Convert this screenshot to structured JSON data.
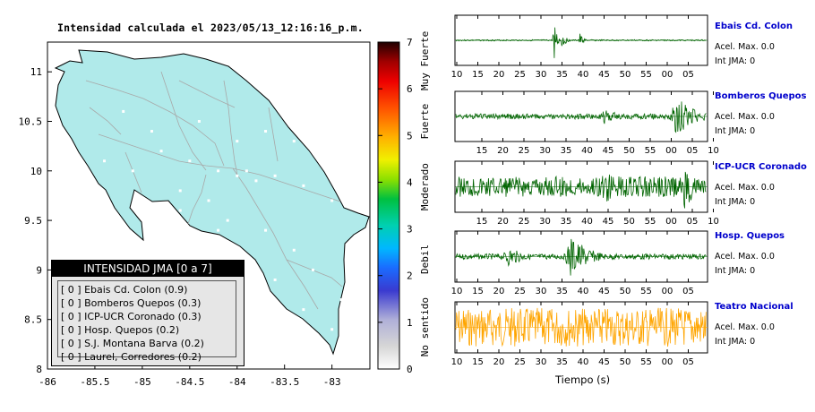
{
  "map": {
    "title": "Intensidad calculada el 2023/05/13_12:16:16_p.m.",
    "x_ticks": [
      "-86",
      "-85.5",
      "-85",
      "-84.5",
      "-84",
      "-83.5",
      "-83"
    ],
    "y_ticks": [
      "11",
      "10.5",
      "10",
      "9.5",
      "9",
      "8.5",
      "8"
    ],
    "land_color": "#b0eaea",
    "road_color": "#a8a8a8"
  },
  "colorbar": {
    "ticks": [
      "0",
      "1",
      "2",
      "3",
      "4",
      "5",
      "6",
      "7"
    ],
    "categories": [
      "No sentido",
      "Debil",
      "Moderado",
      "Fuerte",
      "Muy Fuerte"
    ]
  },
  "legend": {
    "title": "INTENSIDAD JMA [0 a 7]",
    "rows": [
      "[ 0 ]  Ebais Cd. Colon (0.9)",
      "[ 0 ]  Bomberos Quepos (0.3)",
      "[ 0 ]  ICP-UCR Coronado (0.3)",
      "[ 0 ]  Hosp. Quepos (0.2)",
      "[ 0 ]  S.J. Montana Barva (0.2)",
      "[ 0 ]  Laurel, Corredores (0.2)"
    ]
  },
  "stations": [
    {
      "name": "Ebais Cd. Colon",
      "accel": "Acel. Max. 0.0",
      "int": "Int JMA: 0",
      "color": "#006400",
      "ticks": [
        "10",
        "15",
        "20",
        "25",
        "30",
        "35",
        "40",
        "45",
        "50",
        "55",
        "00",
        "05"
      ]
    },
    {
      "name": "Bomberos Quepos",
      "accel": "Acel. Max. 0.0",
      "int": "Int JMA: 0",
      "color": "#006400",
      "ticks": [
        "15",
        "20",
        "25",
        "30",
        "35",
        "40",
        "45",
        "50",
        "55",
        "00",
        "05",
        "10"
      ]
    },
    {
      "name": "ICP-UCR Coronado",
      "accel": "Acel. Max. 0.0",
      "int": "Int JMA: 0",
      "color": "#006400",
      "ticks": [
        "15",
        "20",
        "25",
        "30",
        "35",
        "40",
        "45",
        "50",
        "55",
        "00",
        "05",
        "10"
      ]
    },
    {
      "name": "Hosp. Quepos",
      "accel": "Acel. Max. 0.0",
      "int": "Int JMA: 0",
      "color": "#006400",
      "ticks": [
        "10",
        "15",
        "20",
        "25",
        "30",
        "35",
        "40",
        "45",
        "50",
        "55",
        "00",
        "05"
      ]
    },
    {
      "name": "Teatro Nacional",
      "accel": "Acel. Max. 0.0",
      "int": "Int JMA: 0",
      "color": "#ffa500",
      "ticks": [
        "10",
        "15",
        "20",
        "25",
        "30",
        "35",
        "40",
        "45",
        "50",
        "55",
        "00",
        "05"
      ]
    }
  ],
  "time_label": "Tiempo (s)",
  "chart_data": [
    {
      "type": "scatter",
      "title": "Intensidad calculada el 2023/05/13_12:16:16_p.m.",
      "xlim": [
        -86,
        -82.6
      ],
      "ylim": [
        8,
        11.3
      ],
      "series": [
        {
          "values": [
            [
              -85.2,
              10.6
            ],
            [
              -84.9,
              10.4
            ],
            [
              -84.4,
              10.5
            ],
            [
              -84.0,
              10.3
            ],
            [
              -83.7,
              10.4
            ],
            [
              -83.4,
              10.3
            ],
            [
              -85.4,
              10.1
            ],
            [
              -85.1,
              10.0
            ],
            [
              -84.8,
              10.2
            ],
            [
              -84.5,
              10.1
            ],
            [
              -84.2,
              10.0
            ],
            [
              -84.0,
              9.95
            ],
            [
              -83.9,
              10.0
            ],
            [
              -83.8,
              9.9
            ],
            [
              -83.6,
              9.95
            ],
            [
              -83.3,
              9.85
            ],
            [
              -83.0,
              9.7
            ],
            [
              -84.6,
              9.8
            ],
            [
              -84.3,
              9.7
            ],
            [
              -84.1,
              9.5
            ],
            [
              -83.7,
              9.4
            ],
            [
              -83.4,
              9.2
            ],
            [
              -83.2,
              9.0
            ],
            [
              -82.9,
              8.7
            ],
            [
              -83.0,
              8.4
            ],
            [
              -83.3,
              8.6
            ],
            [
              -83.6,
              8.9
            ],
            [
              -84.2,
              9.4
            ],
            [
              -84.6,
              9.6
            ]
          ]
        }
      ]
    },
    {
      "type": "line",
      "title": "Ebais Cd. Colon",
      "x_ticks": [
        "10",
        "15",
        "20",
        "25",
        "30",
        "35",
        "40",
        "45",
        "50",
        "55",
        "00",
        "05"
      ],
      "events": [
        {
          "x": "33",
          "amp": 1.0
        },
        {
          "x": "35",
          "amp": 0.5
        },
        {
          "x": "39",
          "amp": 0.45
        }
      ],
      "background_amp": 0.03
    },
    {
      "type": "line",
      "title": "Bomberos Quepos",
      "x_ticks": [
        "15",
        "20",
        "25",
        "30",
        "35",
        "40",
        "45",
        "50",
        "55",
        "00",
        "05",
        "10"
      ],
      "events": [
        {
          "x": "44",
          "amp": 0.35
        },
        {
          "x": "01",
          "amp": 1.0
        }
      ],
      "background_amp": 0.12
    },
    {
      "type": "line",
      "title": "ICP-UCR Coronado",
      "x_ticks": [
        "15",
        "20",
        "25",
        "30",
        "35",
        "40",
        "45",
        "50",
        "55",
        "00",
        "05",
        "10"
      ],
      "events": [
        {
          "x": "44",
          "amp": 0.8
        },
        {
          "x": "03",
          "amp": 1.0
        }
      ],
      "background_amp": 0.45
    },
    {
      "type": "line",
      "title": "Hosp. Quepos",
      "x_ticks": [
        "10",
        "15",
        "20",
        "25",
        "30",
        "35",
        "40",
        "45",
        "50",
        "55",
        "00",
        "05"
      ],
      "events": [
        {
          "x": "22",
          "amp": 0.45
        },
        {
          "x": "37",
          "amp": 1.0
        }
      ],
      "background_amp": 0.12
    },
    {
      "type": "line",
      "title": "Teatro Nacional",
      "x_ticks": [
        "10",
        "15",
        "20",
        "25",
        "30",
        "35",
        "40",
        "45",
        "50",
        "55",
        "00",
        "05"
      ],
      "events": [],
      "background_amp": 0.85
    }
  ]
}
